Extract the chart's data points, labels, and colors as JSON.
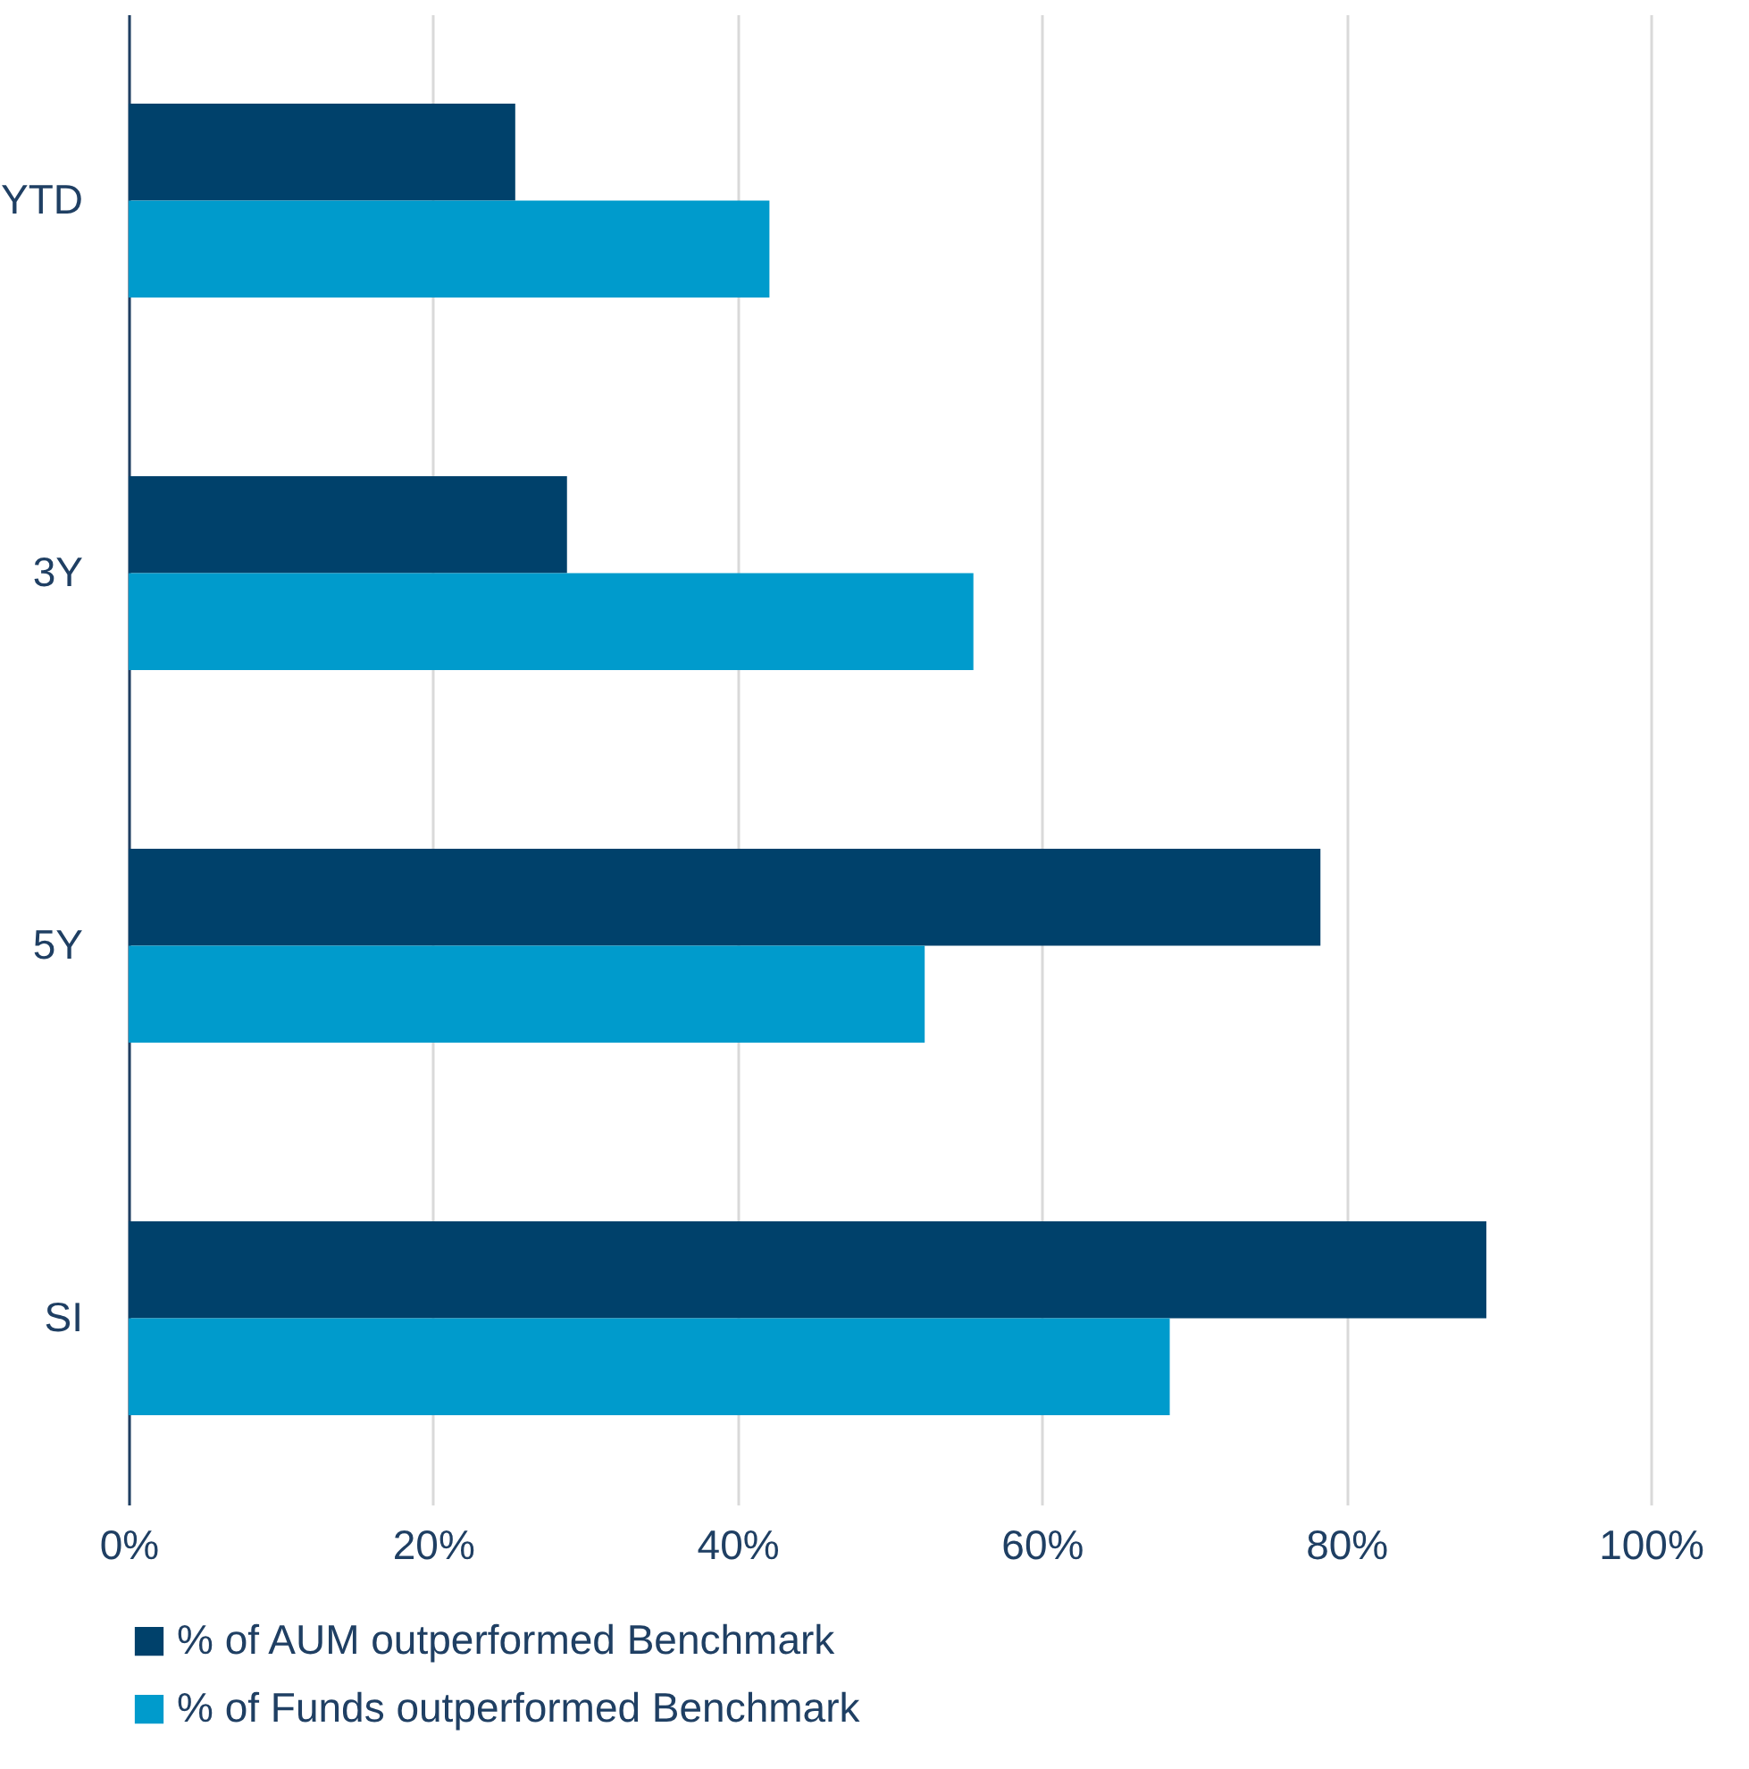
{
  "chart_data": {
    "type": "bar",
    "orientation": "horizontal",
    "categories": [
      "YTD",
      "3Y",
      "5Y",
      "SI"
    ],
    "series": [
      {
        "name": "% of AUM outperformed Benchmark",
        "color": "#00416b",
        "values": [
          25.4,
          28.8,
          78.3,
          89.2
        ]
      },
      {
        "name": "% of Funds outperformed Benchmark",
        "color": "#009bcc",
        "values": [
          42.1,
          55.5,
          52.3,
          68.4
        ]
      }
    ],
    "xlim": [
      0,
      100
    ],
    "xticks": [
      {
        "value": 0,
        "label": "0%"
      },
      {
        "value": 20,
        "label": "20%"
      },
      {
        "value": 40,
        "label": "40%"
      },
      {
        "value": 60,
        "label": "60%"
      },
      {
        "value": 80,
        "label": "80%"
      },
      {
        "value": 100,
        "label": "100%"
      }
    ],
    "grid": "x",
    "legend": "bottom"
  }
}
